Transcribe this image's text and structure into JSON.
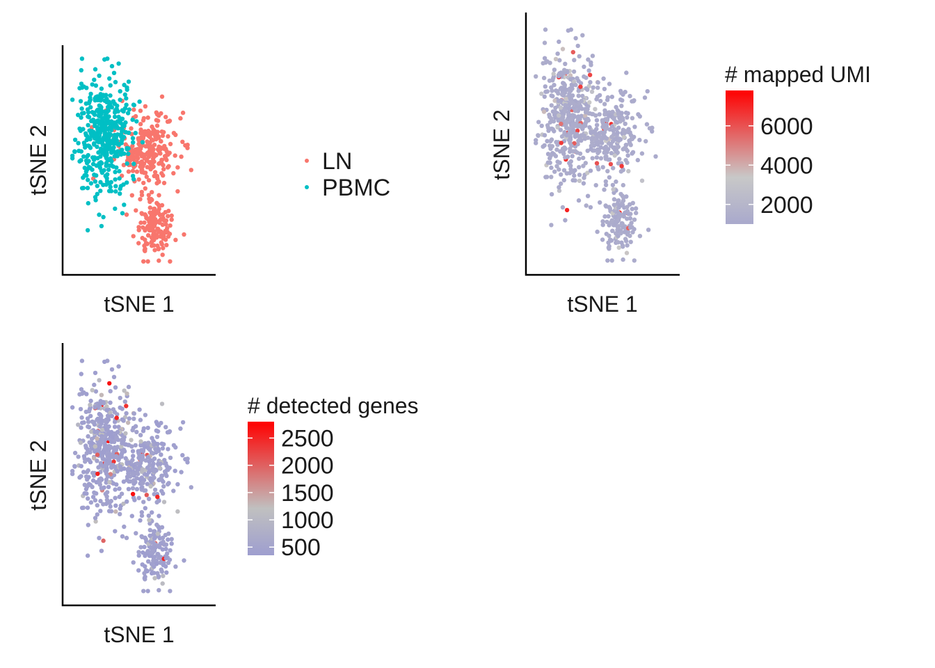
{
  "chart_data": [
    {
      "type": "scatter",
      "title": "",
      "xlabel": "tSNE 1",
      "ylabel": "tSNE 2",
      "color_by": "sample",
      "legend": {
        "placement": "right",
        "entries": [
          {
            "label": "LN",
            "color": "#F8766D"
          },
          {
            "label": "PBMC",
            "color": "#00BFC4"
          }
        ]
      },
      "clusters": [
        {
          "name": "LN",
          "center": [
            0.55,
            0.55
          ],
          "spread": [
            0.2,
            0.16
          ],
          "count": 250
        },
        {
          "name": "LN",
          "center": [
            0.6,
            0.18
          ],
          "spread": [
            0.12,
            0.12
          ],
          "count": 140
        },
        {
          "name": "PBMC",
          "center": [
            0.25,
            0.62
          ],
          "spread": [
            0.18,
            0.24
          ],
          "count": 430
        }
      ]
    },
    {
      "type": "scatter",
      "title": "",
      "xlabel": "tSNE 1",
      "ylabel": "tSNE 2",
      "color_by": "# mapped UMI",
      "legend": {
        "placement": "right",
        "title": "# mapped UMI",
        "ticks": [
          2000,
          4000,
          6000
        ],
        "range": [
          1000,
          7800
        ],
        "low_color": "#A9A9CC",
        "mid_color": "#C8C8C8",
        "high_color": "#FF0000"
      },
      "grid": false
    },
    {
      "type": "scatter",
      "title": "",
      "xlabel": "tSNE 1",
      "ylabel": "tSNE 2",
      "color_by": "# detected genes",
      "legend": {
        "placement": "right",
        "title": "# detected genes",
        "ticks": [
          500,
          1000,
          1500,
          2000,
          2500
        ],
        "range": [
          350,
          2800
        ],
        "low_color": "#9E9ECF",
        "mid_color": "#C0C0C0",
        "high_color": "#FF0000"
      },
      "grid": false
    }
  ]
}
